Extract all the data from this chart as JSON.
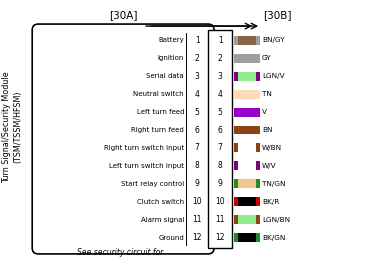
{
  "title_line1": "Turn Signal/Security Module",
  "title_line2": "(TSM/TSSM/HFSM)",
  "connector_30A": "[30A]",
  "connector_30B": "[30B]",
  "pins_left": [
    "Battery",
    "Ignition",
    "Serial data",
    "Neutral switch",
    "Left turn feed",
    "Right turn feed",
    "Right turn switch input",
    "Left turn switch input",
    "Start relay control",
    "Clutch switch",
    "Alarm signal",
    "Ground"
  ],
  "pin_numbers": [
    1,
    2,
    3,
    4,
    5,
    6,
    7,
    8,
    9,
    10,
    11,
    12
  ],
  "wire_labels": [
    "BN/GY",
    "GY",
    "LGN/V",
    "TN",
    "V",
    "BN",
    "W/BN",
    "W/V",
    "TN/GN",
    "BK/R",
    "LGN/BN",
    "BK/GN"
  ],
  "wire_stripe_data": [
    [
      [
        "#8B6347",
        "#9E9E9E"
      ],
      "BN/GY"
    ],
    [
      [
        "#9E9E9E"
      ],
      "GY"
    ],
    [
      [
        "#90EE90",
        "#800080"
      ],
      "LGN/V"
    ],
    [
      [
        "#FFDAB9"
      ],
      "TN"
    ],
    [
      [
        "#9900CC"
      ],
      "V"
    ],
    [
      [
        "#8B4513"
      ],
      "BN"
    ],
    [
      [
        "#FFFFFF",
        "#8B4513"
      ],
      "W/BN"
    ],
    [
      [
        "#FFFFFF",
        "#800080"
      ],
      "W/V"
    ],
    [
      [
        "#F4C68D",
        "#228B22"
      ],
      "TN/GN"
    ],
    [
      [
        "#000000",
        "#CC0000"
      ],
      "BK/R"
    ],
    [
      [
        "#90EE90",
        "#8B4513"
      ],
      "LGN/BN"
    ],
    [
      [
        "#000000",
        "#228B22"
      ],
      "BK/GN"
    ]
  ],
  "background_color": "#FFFFFF",
  "bottom_text": "See security circuit for"
}
